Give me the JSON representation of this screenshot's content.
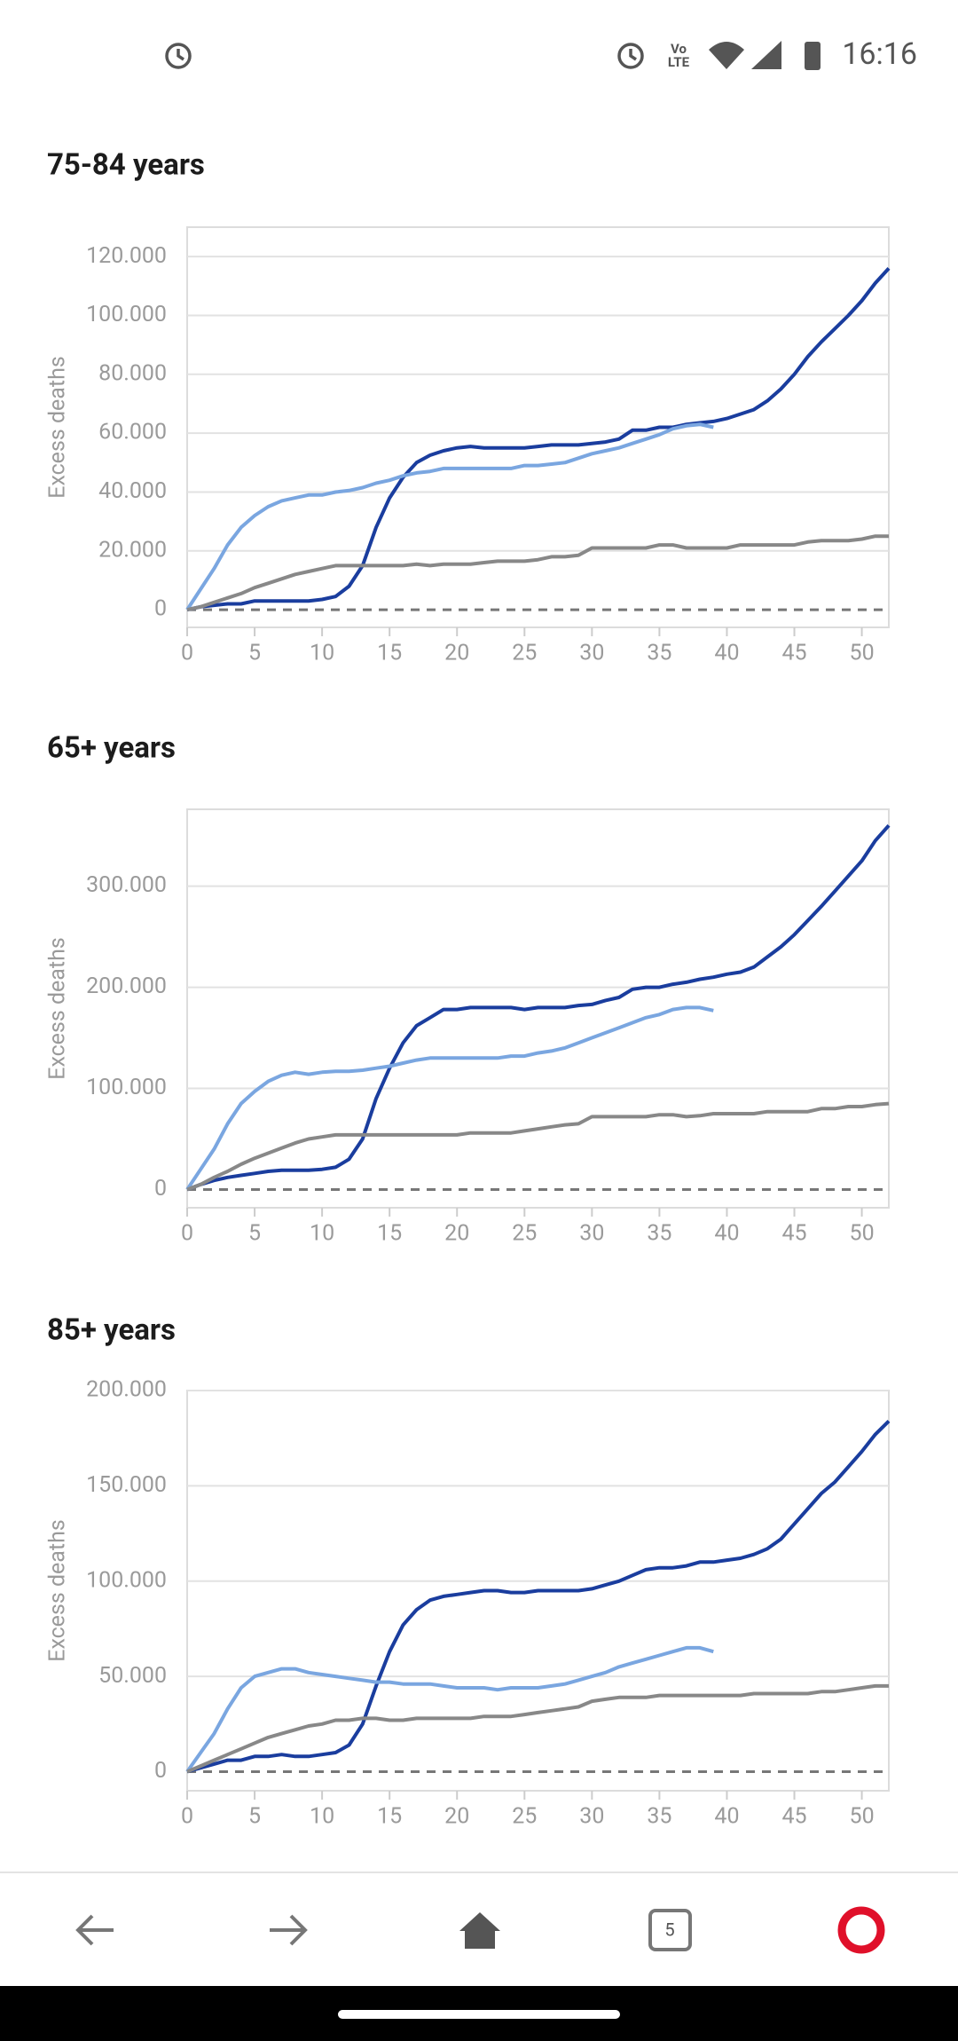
{
  "status_bar": {
    "network": [
      "Vo",
      "LTE"
    ],
    "time": "16:16"
  },
  "chart_data": [
    {
      "type": "line",
      "title": "75-84 years",
      "y_label": "Excess deaths",
      "x": [
        0,
        1,
        2,
        3,
        4,
        5,
        6,
        7,
        8,
        9,
        10,
        11,
        12,
        13,
        14,
        15,
        16,
        17,
        18,
        19,
        20,
        21,
        22,
        23,
        24,
        25,
        26,
        27,
        28,
        29,
        30,
        31,
        32,
        33,
        34,
        35,
        36,
        37,
        38,
        39,
        40,
        41,
        42,
        43,
        44,
        45,
        46,
        47,
        48,
        49,
        50,
        51,
        52
      ],
      "series": [
        {
          "color": "#1a3d9e",
          "values": [
            0,
            1000,
            1500,
            2000,
            2000,
            3000,
            3000,
            3000,
            3000,
            3000,
            3500,
            4500,
            8000,
            15000,
            28000,
            38000,
            45000,
            50000,
            52500,
            54000,
            55000,
            55500,
            55000,
            55000,
            55000,
            55000,
            55500,
            56000,
            56000,
            56000,
            56500,
            57000,
            58000,
            61000,
            61000,
            62000,
            62000,
            63000,
            63500,
            64000,
            65000,
            66500,
            68000,
            71000,
            75000,
            80000,
            86000,
            91000,
            95500,
            100000,
            105000,
            111000,
            116000
          ]
        },
        {
          "color": "#7aa6e0",
          "values": [
            0,
            7000,
            14000,
            22000,
            28000,
            32000,
            35000,
            37000,
            38000,
            39000,
            39000,
            40000,
            40500,
            41500,
            43000,
            44000,
            45500,
            46500,
            47000,
            48000,
            48000,
            48000,
            48000,
            48000,
            48000,
            49000,
            49000,
            49500,
            50000,
            51500,
            53000,
            54000,
            55000,
            56500,
            58000,
            59500,
            61500,
            62500,
            63000,
            62000,
            null,
            null,
            null,
            null,
            null,
            null,
            null,
            null,
            null,
            null,
            null,
            null,
            null
          ]
        },
        {
          "color": "#888888",
          "values": [
            0,
            1000,
            2500,
            4000,
            5500,
            7500,
            9000,
            10500,
            12000,
            13000,
            14000,
            15000,
            15000,
            15000,
            15000,
            15000,
            15000,
            15500,
            15000,
            15500,
            15500,
            15500,
            16000,
            16500,
            16500,
            16500,
            17000,
            18000,
            18000,
            18500,
            21000,
            21000,
            21000,
            21000,
            21000,
            22000,
            22000,
            21000,
            21000,
            21000,
            21000,
            22000,
            22000,
            22000,
            22000,
            22000,
            23000,
            23500,
            23500,
            23500,
            24000,
            25000,
            25000
          ]
        }
      ],
      "xlim": [
        0,
        52
      ],
      "xticks": [
        0,
        5,
        10,
        15,
        20,
        25,
        30,
        35,
        40,
        45,
        50
      ],
      "ylim": [
        -6000,
        130000
      ],
      "yticks": [
        0,
        {
          "value": 20000,
          "label": "20.000"
        },
        {
          "value": 40000,
          "label": "40.000"
        },
        {
          "value": 60000,
          "label": "60.000"
        },
        {
          "value": 80000,
          "label": "80.000"
        },
        {
          "value": 100000,
          "label": "100.000"
        },
        {
          "value": 120000,
          "label": "120.000"
        }
      ],
      "grid": true
    },
    {
      "type": "line",
      "title": "65+ years",
      "y_label": "Excess deaths",
      "x": [
        0,
        1,
        2,
        3,
        4,
        5,
        6,
        7,
        8,
        9,
        10,
        11,
        12,
        13,
        14,
        15,
        16,
        17,
        18,
        19,
        20,
        21,
        22,
        23,
        24,
        25,
        26,
        27,
        28,
        29,
        30,
        31,
        32,
        33,
        34,
        35,
        36,
        37,
        38,
        39,
        40,
        41,
        42,
        43,
        44,
        45,
        46,
        47,
        48,
        49,
        50,
        51,
        52
      ],
      "series": [
        {
          "color": "#1a3d9e",
          "values": [
            0,
            5000,
            9000,
            12000,
            14000,
            16000,
            18000,
            19000,
            19000,
            19000,
            20000,
            22000,
            30000,
            50000,
            90000,
            120000,
            145000,
            162000,
            170000,
            178000,
            178000,
            180000,
            180000,
            180000,
            180000,
            178000,
            180000,
            180000,
            180000,
            182000,
            183000,
            187000,
            190000,
            198000,
            200000,
            200000,
            203000,
            205000,
            208000,
            210000,
            213000,
            215000,
            220000,
            230000,
            240000,
            252000,
            266000,
            280000,
            295000,
            310000,
            325000,
            345000,
            360000
          ]
        },
        {
          "color": "#7aa6e0",
          "values": [
            0,
            20000,
            40000,
            65000,
            85000,
            97000,
            107000,
            113000,
            116000,
            114000,
            116000,
            117000,
            117000,
            118000,
            120000,
            122000,
            125000,
            128000,
            130000,
            130000,
            130000,
            130000,
            130000,
            130000,
            132000,
            132000,
            135000,
            137000,
            140000,
            145000,
            150000,
            155000,
            160000,
            165000,
            170000,
            173000,
            178000,
            180000,
            180000,
            177000,
            null,
            null,
            null,
            null,
            null,
            null,
            null,
            null,
            null,
            null,
            null,
            null,
            null
          ]
        },
        {
          "color": "#888888",
          "values": [
            0,
            5000,
            12000,
            18000,
            25000,
            31000,
            36000,
            41000,
            46000,
            50000,
            52000,
            54000,
            54000,
            54000,
            54000,
            54000,
            54000,
            54000,
            54000,
            54000,
            54000,
            56000,
            56000,
            56000,
            56000,
            58000,
            60000,
            62000,
            64000,
            65000,
            72000,
            72000,
            72000,
            72000,
            72000,
            74000,
            74000,
            72000,
            73000,
            75000,
            75000,
            75000,
            75000,
            77000,
            77000,
            77000,
            77000,
            80000,
            80000,
            82000,
            82000,
            84000,
            85000
          ]
        }
      ],
      "xlim": [
        0,
        52
      ],
      "xticks": [
        0,
        5,
        10,
        15,
        20,
        25,
        30,
        35,
        40,
        45,
        50
      ],
      "ylim": [
        -18000,
        376000
      ],
      "yticks": [
        0,
        {
          "value": 100000,
          "label": "100.000"
        },
        {
          "value": 200000,
          "label": "200.000"
        },
        {
          "value": 300000,
          "label": "300.000"
        }
      ],
      "grid": true
    },
    {
      "type": "line",
      "title": "85+ years",
      "y_label": "Excess deaths",
      "x": [
        0,
        1,
        2,
        3,
        4,
        5,
        6,
        7,
        8,
        9,
        10,
        11,
        12,
        13,
        14,
        15,
        16,
        17,
        18,
        19,
        20,
        21,
        22,
        23,
        24,
        25,
        26,
        27,
        28,
        29,
        30,
        31,
        32,
        33,
        34,
        35,
        36,
        37,
        38,
        39,
        40,
        41,
        42,
        43,
        44,
        45,
        46,
        47,
        48,
        49,
        50,
        51,
        52
      ],
      "series": [
        {
          "color": "#1a3d9e",
          "values": [
            0,
            2000,
            4000,
            6000,
            6000,
            8000,
            8000,
            9000,
            8000,
            8000,
            9000,
            10000,
            14000,
            25000,
            45000,
            63000,
            77000,
            85000,
            90000,
            92000,
            93000,
            94000,
            95000,
            95000,
            94000,
            94000,
            95000,
            95000,
            95000,
            95000,
            96000,
            98000,
            100000,
            103000,
            106000,
            107000,
            107000,
            108000,
            110000,
            110000,
            111000,
            112000,
            114000,
            117000,
            122000,
            130000,
            138000,
            146000,
            152000,
            160000,
            168000,
            177000,
            184000
          ]
        },
        {
          "color": "#7aa6e0",
          "values": [
            0,
            10000,
            20000,
            33000,
            44000,
            50000,
            52000,
            54000,
            54000,
            52000,
            51000,
            50000,
            49000,
            48000,
            47000,
            47000,
            46000,
            46000,
            46000,
            45000,
            44000,
            44000,
            44000,
            43000,
            44000,
            44000,
            44000,
            45000,
            46000,
            48000,
            50000,
            52000,
            55000,
            57000,
            59000,
            61000,
            63000,
            65000,
            65000,
            63000,
            null,
            null,
            null,
            null,
            null,
            null,
            null,
            null,
            null,
            null,
            null,
            null,
            null
          ]
        },
        {
          "color": "#888888",
          "values": [
            0,
            3000,
            6000,
            9000,
            12000,
            15000,
            18000,
            20000,
            22000,
            24000,
            25000,
            27000,
            27000,
            28000,
            28000,
            27000,
            27000,
            28000,
            28000,
            28000,
            28000,
            28000,
            29000,
            29000,
            29000,
            30000,
            31000,
            32000,
            33000,
            34000,
            37000,
            38000,
            39000,
            39000,
            39000,
            40000,
            40000,
            40000,
            40000,
            40000,
            40000,
            40000,
            41000,
            41000,
            41000,
            41000,
            41000,
            42000,
            42000,
            43000,
            44000,
            45000,
            45000
          ]
        }
      ],
      "xlim": [
        0,
        52
      ],
      "xticks": [
        0,
        5,
        10,
        15,
        20,
        25,
        30,
        35,
        40,
        45,
        50
      ],
      "ylim": [
        -10000,
        200000
      ],
      "yticks": [
        0,
        {
          "value": 50000,
          "label": "50.000"
        },
        {
          "value": 100000,
          "label": "100.000"
        },
        {
          "value": 150000,
          "label": "150.000"
        },
        {
          "value": 200000,
          "label": "200.000"
        }
      ],
      "grid": true
    }
  ],
  "nav_bar": {
    "tab_count": "5"
  }
}
